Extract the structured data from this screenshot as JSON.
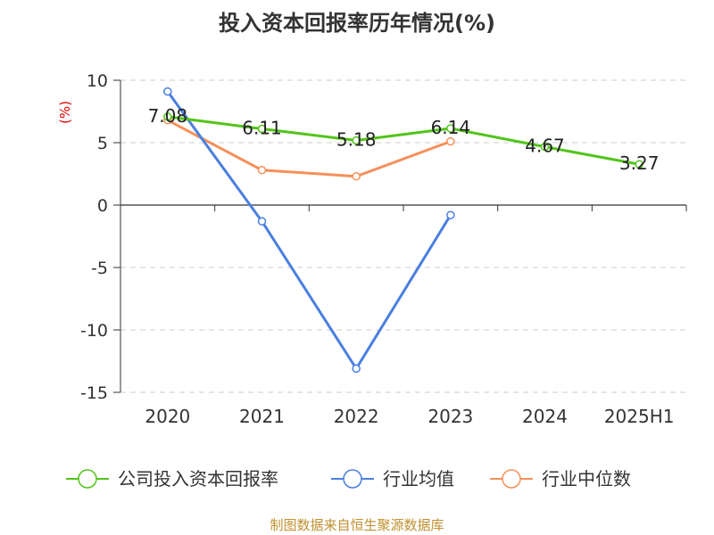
{
  "colors": {
    "company": "#52c41a",
    "industry_avg": "#4a7fe0",
    "industry_median": "#f5905a",
    "axis": "#333333",
    "grid": "#cccccc",
    "unit": "#dd0000",
    "footer": "#c0902f"
  },
  "chart_data": {
    "type": "line",
    "title": "投入资本回报率历年情况(%)",
    "ylabel": "(%)",
    "xlabel": "",
    "categories": [
      "2020",
      "2021",
      "2022",
      "2023",
      "2024",
      "2025H1"
    ],
    "ylim": [
      -15,
      10
    ],
    "yticks": [
      10,
      5,
      0,
      -5,
      -10,
      -15
    ],
    "grid": true,
    "legend_position": "bottom",
    "series": [
      {
        "name": "公司投入资本回报率",
        "key": "company",
        "values": [
          7.08,
          6.11,
          5.18,
          6.14,
          4.67,
          3.27
        ],
        "labels": [
          "7.08",
          "6.11",
          "5.18",
          "6.14",
          "4.67",
          "3.27"
        ]
      },
      {
        "name": "行业均值",
        "key": "industry_avg",
        "values": [
          9.1,
          -1.3,
          -13.1,
          -0.8,
          null,
          null
        ]
      },
      {
        "name": "行业中位数",
        "key": "industry_median",
        "values": [
          6.8,
          2.8,
          2.3,
          5.1,
          null,
          null
        ]
      }
    ]
  },
  "footer": "制图数据来自恒生聚源数据库"
}
